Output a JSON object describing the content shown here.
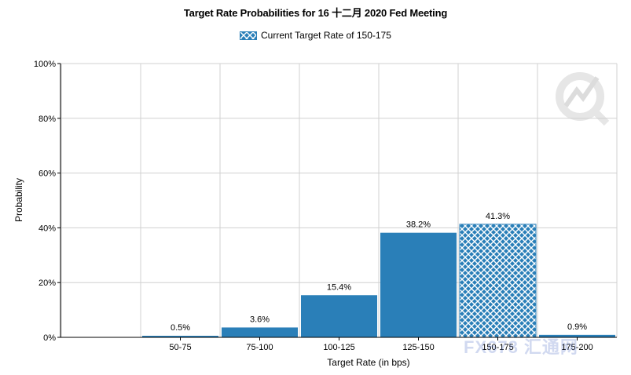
{
  "chart_data": {
    "type": "bar",
    "title": "Target Rate Probabilities for 16 十二月 2020 Fed Meeting",
    "legend": "Current Target Rate of 150-175",
    "legend_position": "top-center",
    "xlabel": "Target Rate (in bps)",
    "ylabel": "Probability",
    "ylim": [
      0,
      100
    ],
    "yticks": [
      "0%",
      "20%",
      "40%",
      "60%",
      "80%",
      "100%"
    ],
    "categories": [
      "50-75",
      "75-100",
      "100-125",
      "125-150",
      "150-175",
      "175-200"
    ],
    "values": [
      0.5,
      3.6,
      15.4,
      38.2,
      41.3,
      0.9
    ],
    "value_labels": [
      "0.5%",
      "3.6%",
      "15.4%",
      "38.2%",
      "41.3%",
      "0.9%"
    ],
    "highlighted_category": "150-175",
    "grid": true,
    "colors": {
      "bar": "#2a7fb8",
      "grid": "#d0d0d0"
    }
  },
  "watermark": {
    "text": "FX678 汇通网"
  }
}
